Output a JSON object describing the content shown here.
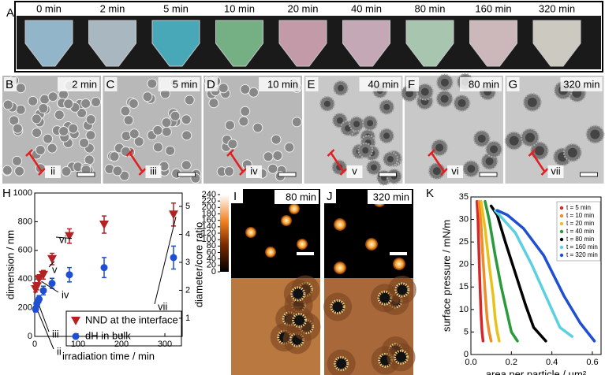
{
  "panel_a": {
    "label": "A",
    "times": [
      "0 min",
      "2 min",
      "5 min",
      "10 min",
      "20 min",
      "40 min",
      "80 min",
      "160 min",
      "320 min"
    ]
  },
  "sem_panels": [
    {
      "label": "B",
      "time": "2 min",
      "marker": "ii"
    },
    {
      "label": "C",
      "time": "5 min",
      "marker": "iii"
    },
    {
      "label": "D",
      "time": "10 min",
      "marker": "iv"
    },
    {
      "label": "E",
      "time": "40 min",
      "marker": "v"
    },
    {
      "label": "F",
      "time": "80 min",
      "marker": "vi"
    },
    {
      "label": "G",
      "time": "320 min",
      "marker": "vii"
    }
  ],
  "afm_panels": [
    {
      "label": "I",
      "time": "80 min"
    },
    {
      "label": "J",
      "time": "320 min"
    }
  ],
  "colorbar": {
    "lim": [
      0,
      240
    ],
    "ticks": [
      0,
      20,
      40,
      60,
      80,
      100,
      120,
      140,
      160,
      180,
      200,
      220,
      240
    ]
  },
  "chart_data": [
    {
      "type": "scatter",
      "label": "H",
      "x_label": "irradiation time / min",
      "y_label": "dimension / nm",
      "y2_label": "diameter/core ratio",
      "xlim": [
        0,
        340
      ],
      "xticks": [
        0,
        100,
        200,
        300
      ],
      "ylim": [
        0,
        1000
      ],
      "yticks": [
        0,
        200,
        400,
        600,
        800,
        1000
      ],
      "y2lim": [
        0.35,
        5.48
      ],
      "y2ticks": [
        1,
        2,
        3,
        4,
        5
      ],
      "x": [
        2,
        5,
        10,
        20,
        40,
        80,
        160,
        320
      ],
      "series": [
        {
          "name": "NND at the interface",
          "color": "#b22222",
          "marker": "triangle",
          "values": [
            330,
            350,
            400,
            430,
            540,
            700,
            780,
            850
          ],
          "errors": [
            20,
            25,
            30,
            30,
            40,
            50,
            60,
            80
          ]
        },
        {
          "name": "dH in bulk",
          "color": "#1f4fd1",
          "marker": "circle",
          "values": [
            190,
            230,
            260,
            320,
            370,
            430,
            480,
            550
          ],
          "errors": [
            20,
            25,
            25,
            30,
            35,
            50,
            70,
            80
          ]
        }
      ],
      "annotations": [
        "ii",
        "iii",
        "iv",
        "v",
        "vi",
        "vii"
      ]
    },
    {
      "type": "line",
      "label": "K",
      "x_label": "area per particle / µm²",
      "y_label": "surface pressure / mN/m",
      "xlim": [
        0,
        0.643
      ],
      "xticks": [
        {
          "value": 0,
          "label": "0.0"
        },
        0.2,
        0.4,
        0.6
      ],
      "ylim": [
        0,
        35
      ],
      "yticks": [
        0,
        5,
        10,
        15,
        20,
        25,
        30,
        35
      ],
      "series": [
        {
          "name": "t = 5 min",
          "color": "#d62728",
          "x": [
            0.03,
            0.035,
            0.04,
            0.045,
            0.05,
            0.055,
            0.06
          ],
          "values": [
            34,
            30,
            22,
            15,
            9,
            5,
            3
          ]
        },
        {
          "name": "t = 10 min",
          "color": "#f08c28",
          "x": [
            0.04,
            0.05,
            0.06,
            0.07,
            0.08,
            0.09,
            0.1
          ],
          "values": [
            34,
            29,
            21,
            14,
            8,
            5,
            3
          ]
        },
        {
          "name": "t = 20 min",
          "color": "#e8c21a",
          "x": [
            0.05,
            0.07,
            0.09,
            0.11,
            0.12,
            0.13,
            0.14
          ],
          "values": [
            34,
            28,
            20,
            13,
            8,
            5,
            3
          ]
        },
        {
          "name": "t = 40 min",
          "color": "#2a9a3a",
          "x": [
            0.07,
            0.09,
            0.12,
            0.15,
            0.18,
            0.2,
            0.23
          ],
          "values": [
            34,
            30,
            22,
            15,
            9,
            5,
            3
          ]
        },
        {
          "name": "t = 80 min",
          "color": "#000000",
          "x": [
            0.1,
            0.13,
            0.17,
            0.22,
            0.27,
            0.31,
            0.37
          ],
          "values": [
            33,
            31,
            25,
            18,
            11,
            6,
            3
          ]
        },
        {
          "name": "t = 160 min",
          "color": "#5bd0e0",
          "x": [
            0.12,
            0.16,
            0.22,
            0.3,
            0.38,
            0.44,
            0.5
          ],
          "values": [
            32,
            30,
            27,
            20,
            12,
            6,
            4
          ]
        },
        {
          "name": "t = 320 min",
          "color": "#1f4fd1",
          "x": [
            0.13,
            0.18,
            0.26,
            0.36,
            0.46,
            0.54,
            0.61
          ],
          "values": [
            32,
            31,
            28,
            22,
            13,
            7,
            3
          ]
        }
      ]
    }
  ]
}
